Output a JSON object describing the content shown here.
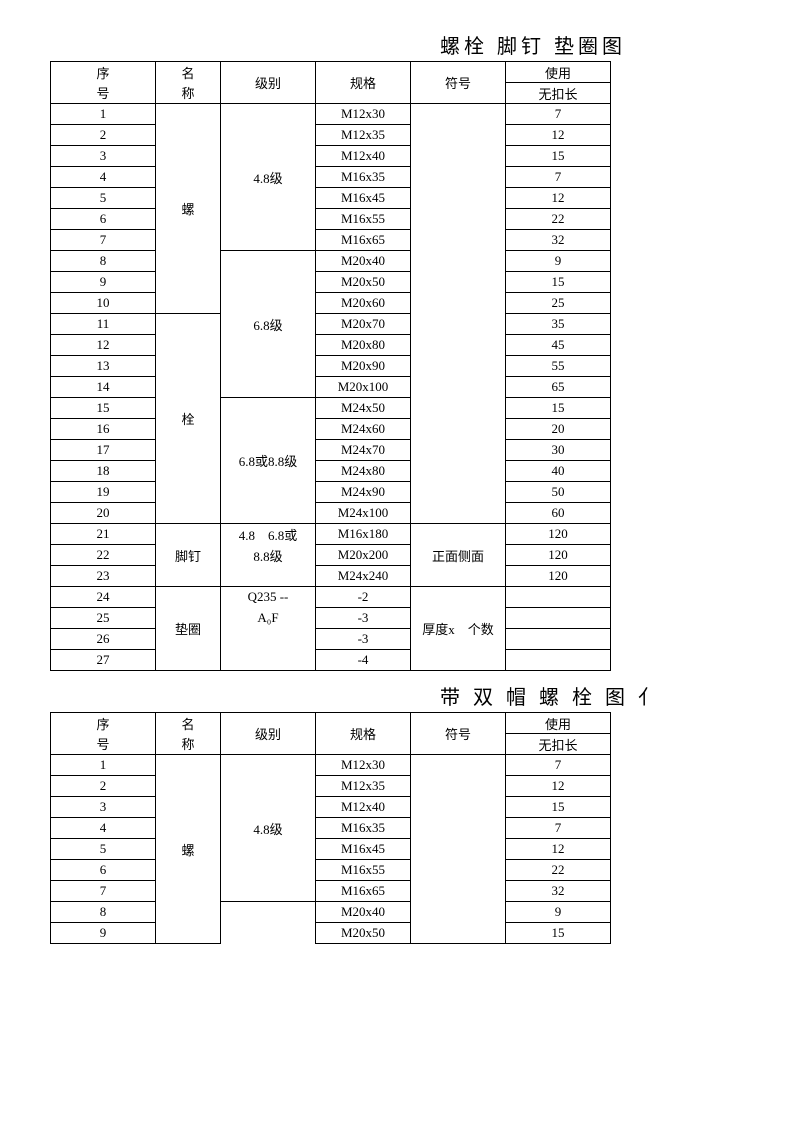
{
  "titles": {
    "t1": "螺栓  脚钉  垫圈图",
    "t2": "带 双 帽 螺 栓 图 亻"
  },
  "headers": {
    "seq1": "序",
    "seq2": "号",
    "name1": "名",
    "name2": "称",
    "grade": "级别",
    "spec": "规格",
    "symbol": "符号",
    "use": "使用",
    "wkc": "无扣长"
  },
  "categories": {
    "luo": "螺",
    "shuan": "栓",
    "jiaoding": "脚钉",
    "dianquan": "垫圈"
  },
  "grades": {
    "g48": "4.8级",
    "g68": "6.8级",
    "g6888": "6.8或8.8级",
    "g486888a": "4.8　6.8或",
    "g486888b": "8.8级",
    "q235a": "Q235 --",
    "q235b": "A₀F"
  },
  "symbols": {
    "front_side": "正面侧面",
    "thickness": "厚度x　个数"
  },
  "t1rows": [
    {
      "n": "1",
      "spec": "M12x30",
      "w": "7"
    },
    {
      "n": "2",
      "spec": "M12x35",
      "w": "12"
    },
    {
      "n": "3",
      "spec": "M12x40",
      "w": "15"
    },
    {
      "n": "4",
      "spec": "M16x35",
      "w": "7"
    },
    {
      "n": "5",
      "spec": "M16x45",
      "w": "12"
    },
    {
      "n": "6",
      "spec": "M16x55",
      "w": "22"
    },
    {
      "n": "7",
      "spec": "M16x65",
      "w": "32"
    },
    {
      "n": "8",
      "spec": "M20x40",
      "w": "9"
    },
    {
      "n": "9",
      "spec": "M20x50",
      "w": "15"
    },
    {
      "n": "10",
      "spec": "M20x60",
      "w": "25"
    },
    {
      "n": "11",
      "spec": "M20x70",
      "w": "35"
    },
    {
      "n": "12",
      "spec": "M20x80",
      "w": "45"
    },
    {
      "n": "13",
      "spec": "M20x90",
      "w": "55"
    },
    {
      "n": "14",
      "spec": "M20x100",
      "w": "65"
    },
    {
      "n": "15",
      "spec": "M24x50",
      "w": "15"
    },
    {
      "n": "16",
      "spec": "M24x60",
      "w": "20"
    },
    {
      "n": "17",
      "spec": "M24x70",
      "w": "30"
    },
    {
      "n": "18",
      "spec": "M24x80",
      "w": "40"
    },
    {
      "n": "19",
      "spec": "M24x90",
      "w": "50"
    },
    {
      "n": "20",
      "spec": "M24x100",
      "w": "60"
    },
    {
      "n": "21",
      "spec": "M16x180",
      "w": "120"
    },
    {
      "n": "22",
      "spec": "M20x200",
      "w": "120"
    },
    {
      "n": "23",
      "spec": "M24x240",
      "w": "120"
    },
    {
      "n": "24",
      "spec": "-2",
      "w": ""
    },
    {
      "n": "25",
      "spec": "-3",
      "w": ""
    },
    {
      "n": "26",
      "spec": "-3",
      "w": ""
    },
    {
      "n": "27",
      "spec": "-4",
      "w": ""
    }
  ],
  "t2rows": [
    {
      "n": "1",
      "spec": "M12x30",
      "w": "7"
    },
    {
      "n": "2",
      "spec": "M12x35",
      "w": "12"
    },
    {
      "n": "3",
      "spec": "M12x40",
      "w": "15"
    },
    {
      "n": "4",
      "spec": "M16x35",
      "w": "7"
    },
    {
      "n": "5",
      "spec": "M16x45",
      "w": "12"
    },
    {
      "n": "6",
      "spec": "M16x55",
      "w": "22"
    },
    {
      "n": "7",
      "spec": "M16x65",
      "w": "32"
    },
    {
      "n": "8",
      "spec": "M20x40",
      "w": "9"
    },
    {
      "n": "9",
      "spec": "M20x50",
      "w": "15"
    }
  ],
  "colors": {
    "text": "#000000",
    "bg": "#ffffff",
    "border": "#000000"
  }
}
